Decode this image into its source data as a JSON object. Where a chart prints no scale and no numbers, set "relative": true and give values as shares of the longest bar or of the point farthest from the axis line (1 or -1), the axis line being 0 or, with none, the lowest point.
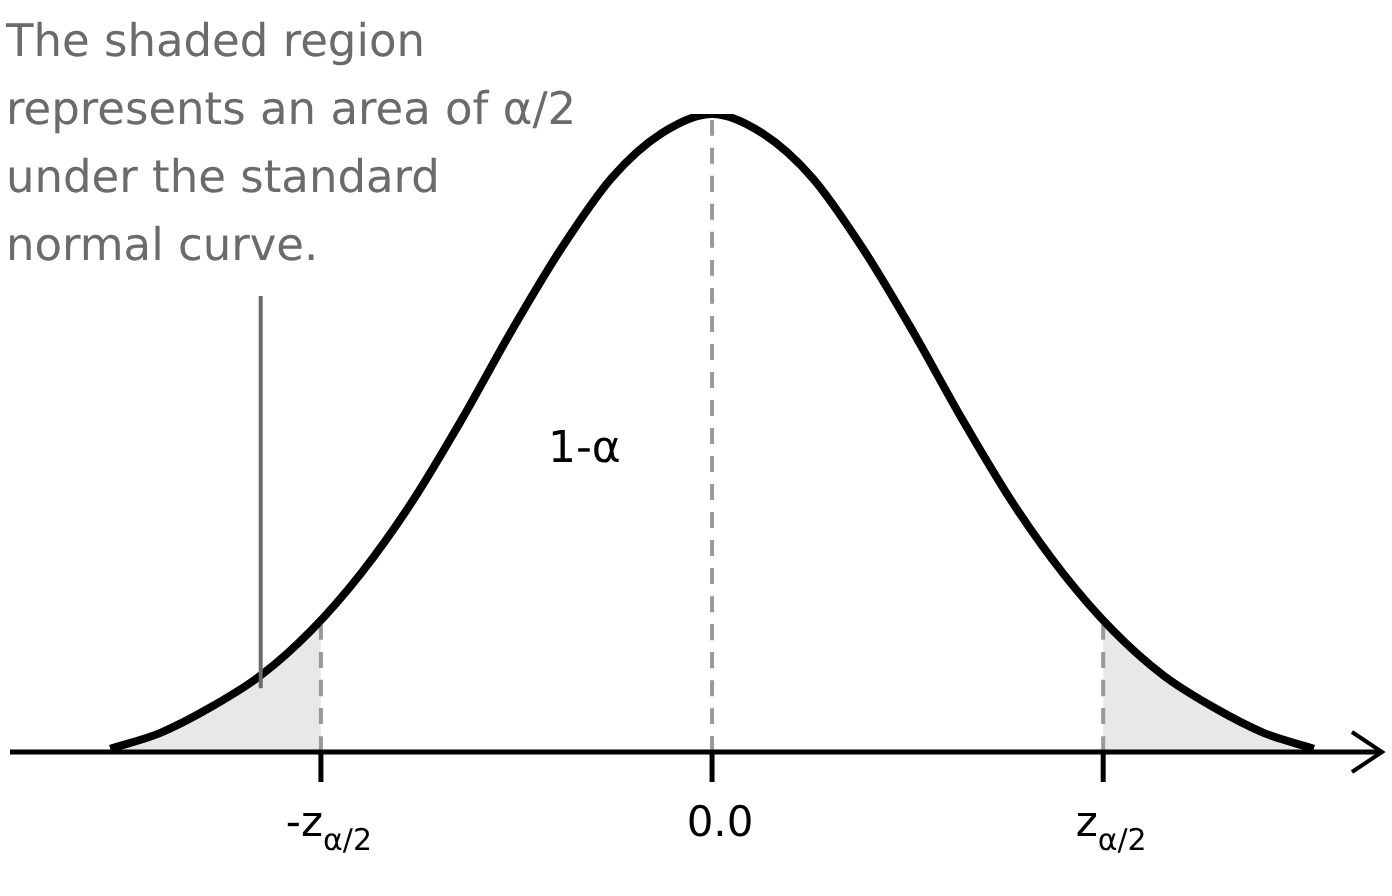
{
  "chart_data": {
    "type": "line",
    "relative": true,
    "marker": "none",
    "tick_labels": "x",
    "annotations": [
      {
        "text": "The shaded region represents an area of α/2 under the standard normal curve.",
        "x": -2.25,
        "y": 0.1
      },
      "1-α"
    ],
    "xlim": [
      -3.5,
      3.35
    ],
    "xticks": [
      {
        "value": -1.95,
        "label": "-z$_{α/2}$"
      },
      {
        "value": 0,
        "label": "0.0"
      },
      {
        "value": 1.95,
        "label": "z$_{α/2}$"
      }
    ],
    "series": [
      {
        "type": "area",
        "color": "#e8e8e8",
        "x": [
          -3,
          -2.75,
          -2.5,
          -2.25,
          -1.95
        ],
        "values": [
          0.005,
          0.03,
          0.07,
          0.12,
          0.2
        ]
      },
      {
        "type": "area",
        "color": "#e8e8e8",
        "x": [
          1.95,
          2.25,
          2.5,
          2.75,
          3
        ],
        "values": [
          0.2,
          0.12,
          0.07,
          0.03,
          0.005
        ]
      },
      {
        "type": "line",
        "color": "#999999",
        "line_style": "dashed",
        "x": [
          -1.95,
          -1.95
        ],
        "values": [
          0,
          0.2
        ]
      },
      {
        "type": "line",
        "color": "#999999",
        "line_style": "dashed",
        "x": [
          0,
          0
        ],
        "values": [
          0,
          1
        ]
      },
      {
        "type": "line",
        "color": "#999999",
        "line_style": "dashed",
        "x": [
          1.95,
          1.95
        ],
        "values": [
          0,
          0.2
        ]
      },
      {
        "type": "line",
        "color": "#000000",
        "line_style": "solid",
        "x": [
          -3,
          -2.75,
          -2.5,
          -2.25,
          -2,
          -1.75,
          -1.5,
          -1.25,
          -1,
          -0.75,
          -0.5,
          -0.25,
          0,
          0.25,
          0.5,
          0.75,
          1,
          1.25,
          1.5,
          1.75,
          2,
          2.25,
          2.5,
          2.75,
          3
        ],
        "values": [
          0.005,
          0.03,
          0.07,
          0.12,
          0.19,
          0.28,
          0.39,
          0.52,
          0.66,
          0.79,
          0.9,
          0.97,
          1,
          0.97,
          0.9,
          0.79,
          0.66,
          0.52,
          0.39,
          0.28,
          0.19,
          0.12,
          0.07,
          0.03,
          0.005
        ]
      }
    ]
  }
}
